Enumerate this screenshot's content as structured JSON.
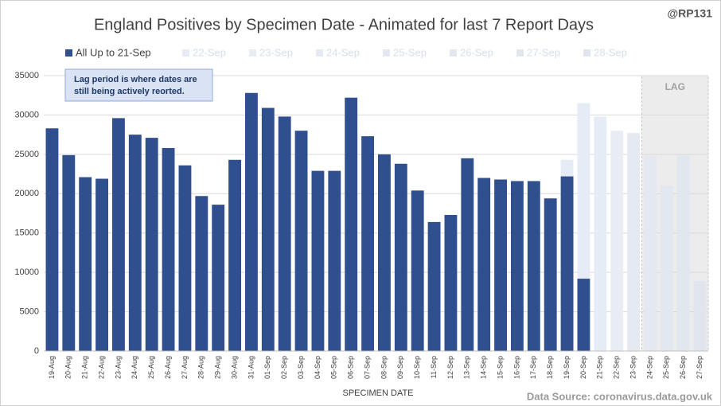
{
  "chart_data": {
    "type": "bar",
    "stacked": true,
    "title": "England Positives by Specimen Date - Animated for last 7 Report Days",
    "handle": "@RP131",
    "annotation": [
      "Lag period is where dates are",
      "still being actively reorted."
    ],
    "lag_label": "LAG",
    "lag_from": "24-Sep",
    "x_label": "SPECIMEN DATE",
    "source": "Data Source: coronavirus.data.gov.uk",
    "grid": true,
    "ylim": [
      0,
      35000
    ],
    "yticks": [
      0,
      5000,
      10000,
      15000,
      20000,
      25000,
      30000,
      35000
    ],
    "categories": [
      "19-Aug",
      "20-Aug",
      "21-Aug",
      "22-Aug",
      "23-Aug",
      "24-Aug",
      "25-Aug",
      "26-Aug",
      "27-Aug",
      "28-Aug",
      "29-Aug",
      "30-Aug",
      "31-Aug",
      "01-Sep",
      "02-Sep",
      "03-Sep",
      "04-Sep",
      "05-Sep",
      "06-Sep",
      "07-Sep",
      "08-Sep",
      "09-Sep",
      "10-Sep",
      "11-Sep",
      "12-Sep",
      "13-Sep",
      "14-Sep",
      "15-Sep",
      "16-Sep",
      "17-Sep",
      "18-Sep",
      "19-Sep",
      "20-Sep",
      "21-Sep",
      "22-Sep",
      "23-Sep",
      "24-Sep",
      "25-Sep",
      "26-Sep",
      "27-Sep"
    ],
    "series": [
      {
        "name": "All Up to 21-Sep",
        "color": "#2f4f8f",
        "values": [
          28300,
          24900,
          22100,
          21900,
          29600,
          27500,
          27100,
          25800,
          23600,
          19700,
          18600,
          24300,
          32800,
          30900,
          29800,
          28000,
          22900,
          22900,
          32200,
          27300,
          25000,
          23800,
          20400,
          16400,
          17300,
          24500,
          22000,
          21800,
          21600,
          21600,
          19400,
          22200,
          9200,
          null,
          null,
          null,
          null,
          null,
          null,
          null
        ]
      },
      {
        "name": "22-Sep",
        "color": "#e6ecf6",
        "values": [
          null,
          null,
          null,
          null,
          null,
          null,
          null,
          null,
          null,
          null,
          null,
          null,
          null,
          null,
          null,
          null,
          null,
          null,
          null,
          null,
          null,
          null,
          null,
          null,
          null,
          null,
          null,
          null,
          null,
          null,
          null,
          2100,
          22300,
          29800,
          null,
          null,
          null,
          null,
          null,
          null
        ]
      },
      {
        "name": "23-Sep",
        "color": "#e8edf5",
        "values": [
          null,
          null,
          null,
          null,
          null,
          null,
          null,
          null,
          null,
          null,
          null,
          null,
          null,
          null,
          null,
          null,
          null,
          null,
          null,
          null,
          null,
          null,
          null,
          null,
          null,
          null,
          null,
          null,
          null,
          null,
          null,
          null,
          null,
          null,
          28000,
          null,
          null,
          null,
          null,
          null
        ]
      },
      {
        "name": "24-Sep",
        "color": "#e4e9f2",
        "values": [
          null,
          null,
          null,
          null,
          null,
          null,
          null,
          null,
          null,
          null,
          null,
          null,
          null,
          null,
          null,
          null,
          null,
          null,
          null,
          null,
          null,
          null,
          null,
          null,
          null,
          null,
          null,
          null,
          null,
          null,
          null,
          null,
          null,
          null,
          null,
          27700,
          null,
          null,
          null,
          null
        ]
      },
      {
        "name": "25-Sep",
        "color": "#e3e8f1",
        "values": [
          null,
          null,
          null,
          null,
          null,
          null,
          null,
          null,
          null,
          null,
          null,
          null,
          null,
          null,
          null,
          null,
          null,
          null,
          null,
          null,
          null,
          null,
          null,
          null,
          null,
          null,
          null,
          null,
          null,
          null,
          null,
          null,
          null,
          null,
          null,
          null,
          24800,
          null,
          null,
          null
        ]
      },
      {
        "name": "26-Sep",
        "color": "#e2e7f0",
        "values": [
          null,
          null,
          null,
          null,
          null,
          null,
          null,
          null,
          null,
          null,
          null,
          null,
          null,
          null,
          null,
          null,
          null,
          null,
          null,
          null,
          null,
          null,
          null,
          null,
          null,
          null,
          null,
          null,
          null,
          null,
          null,
          null,
          null,
          null,
          null,
          null,
          null,
          21000,
          null,
          null
        ]
      },
      {
        "name": "27-Sep",
        "color": "#e1e6ef",
        "values": [
          null,
          null,
          null,
          null,
          null,
          null,
          null,
          null,
          null,
          null,
          null,
          null,
          null,
          null,
          null,
          null,
          null,
          null,
          null,
          null,
          null,
          null,
          null,
          null,
          null,
          null,
          null,
          null,
          null,
          null,
          null,
          null,
          null,
          null,
          null,
          null,
          null,
          null,
          24900,
          null
        ]
      },
      {
        "name": "28-Sep",
        "color": "#e0e5ee",
        "values": [
          null,
          null,
          null,
          null,
          null,
          null,
          null,
          null,
          null,
          null,
          null,
          null,
          null,
          null,
          null,
          null,
          null,
          null,
          null,
          null,
          null,
          null,
          null,
          null,
          null,
          null,
          null,
          null,
          null,
          null,
          null,
          null,
          null,
          null,
          null,
          null,
          null,
          null,
          null,
          8900
        ]
      }
    ]
  }
}
